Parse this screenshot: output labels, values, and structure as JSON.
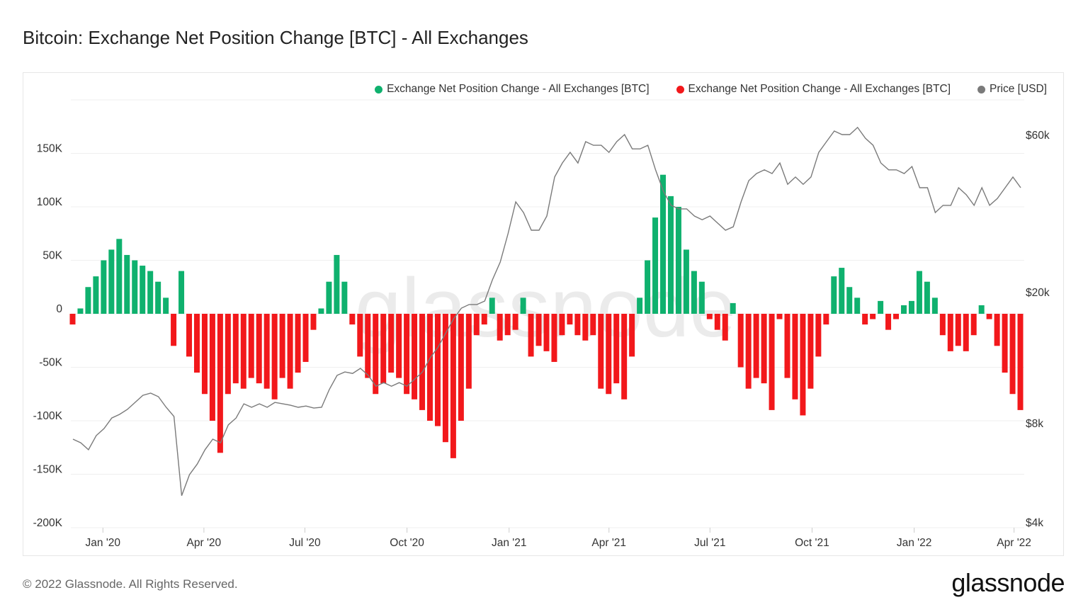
{
  "title": "Bitcoin: Exchange Net Position Change [BTC] - All Exchanges",
  "footer": "© 2022 Glassnode. All Rights Reserved.",
  "logo_text": "glassnode",
  "watermark_text": "glassnode",
  "colors": {
    "positive": "#0fb16e",
    "negative": "#f2181b",
    "price": "#7a7a7a",
    "grid": "#efefef"
  },
  "legend": [
    {
      "label": "Exchange Net Position Change - All Exchanges [BTC]",
      "color": "#0fb16e"
    },
    {
      "label": "Exchange Net Position Change - All Exchanges [BTC]",
      "color": "#f2181b"
    },
    {
      "label": "Price [USD]",
      "color": "#7a7a7a"
    }
  ],
  "chart_data": {
    "type": "bar+line",
    "title": "Bitcoin: Exchange Net Position Change [BTC] - All Exchanges",
    "ylim": [
      -200000,
      200000
    ],
    "y_ticks": [
      {
        "value": 150000,
        "label": "150K"
      },
      {
        "value": 100000,
        "label": "100K"
      },
      {
        "value": 50000,
        "label": "50K"
      },
      {
        "value": 0,
        "label": "0"
      },
      {
        "value": -50000,
        "label": "-50K"
      },
      {
        "value": -100000,
        "label": "-100K"
      },
      {
        "value": -150000,
        "label": "-150K"
      },
      {
        "value": -200000,
        "label": "-200K"
      }
    ],
    "y2_scale": "log",
    "y2lim": [
      4000,
      77000
    ],
    "y2_ticks": [
      {
        "value": 60000,
        "label": "$60k"
      },
      {
        "value": 20000,
        "label": "$20k"
      },
      {
        "value": 8000,
        "label": "$8k"
      },
      {
        "value": 4000,
        "label": "$4k"
      }
    ],
    "x_ticks": [
      {
        "date": "2020-01-01",
        "label": "Jan '20"
      },
      {
        "date": "2020-04-01",
        "label": "Apr '20"
      },
      {
        "date": "2020-07-01",
        "label": "Jul '20"
      },
      {
        "date": "2020-10-01",
        "label": "Oct '20"
      },
      {
        "date": "2021-01-01",
        "label": "Jan '21"
      },
      {
        "date": "2021-04-01",
        "label": "Apr '21"
      },
      {
        "date": "2021-07-01",
        "label": "Jul '21"
      },
      {
        "date": "2021-10-01",
        "label": "Oct '21"
      },
      {
        "date": "2022-01-01",
        "label": "Jan '22"
      },
      {
        "date": "2022-04-01",
        "label": "Apr '22"
      }
    ],
    "grid": true,
    "legend_position": "top-right",
    "dates": [
      "2019-12-05",
      "2019-12-12",
      "2019-12-19",
      "2019-12-26",
      "2020-01-02",
      "2020-01-09",
      "2020-01-16",
      "2020-01-23",
      "2020-01-30",
      "2020-02-06",
      "2020-02-13",
      "2020-02-20",
      "2020-02-27",
      "2020-03-05",
      "2020-03-12",
      "2020-03-19",
      "2020-03-26",
      "2020-04-02",
      "2020-04-09",
      "2020-04-16",
      "2020-04-23",
      "2020-04-30",
      "2020-05-07",
      "2020-05-14",
      "2020-05-21",
      "2020-05-28",
      "2020-06-04",
      "2020-06-11",
      "2020-06-18",
      "2020-06-25",
      "2020-07-02",
      "2020-07-09",
      "2020-07-16",
      "2020-07-23",
      "2020-07-30",
      "2020-08-06",
      "2020-08-13",
      "2020-08-20",
      "2020-08-27",
      "2020-09-03",
      "2020-09-10",
      "2020-09-17",
      "2020-09-24",
      "2020-10-01",
      "2020-10-08",
      "2020-10-15",
      "2020-10-22",
      "2020-10-29",
      "2020-11-05",
      "2020-11-12",
      "2020-11-19",
      "2020-11-26",
      "2020-12-03",
      "2020-12-10",
      "2020-12-17",
      "2020-12-24",
      "2020-12-31",
      "2021-01-07",
      "2021-01-14",
      "2021-01-21",
      "2021-01-28",
      "2021-02-04",
      "2021-02-11",
      "2021-02-18",
      "2021-02-25",
      "2021-03-04",
      "2021-03-11",
      "2021-03-18",
      "2021-03-25",
      "2021-04-01",
      "2021-04-08",
      "2021-04-15",
      "2021-04-22",
      "2021-04-29",
      "2021-05-06",
      "2021-05-13",
      "2021-05-20",
      "2021-05-27",
      "2021-06-03",
      "2021-06-10",
      "2021-06-17",
      "2021-06-24",
      "2021-07-01",
      "2021-07-08",
      "2021-07-15",
      "2021-07-22",
      "2021-07-29",
      "2021-08-05",
      "2021-08-12",
      "2021-08-19",
      "2021-08-26",
      "2021-09-02",
      "2021-09-09",
      "2021-09-16",
      "2021-09-23",
      "2021-09-30",
      "2021-10-07",
      "2021-10-14",
      "2021-10-21",
      "2021-10-28",
      "2021-11-04",
      "2021-11-11",
      "2021-11-18",
      "2021-11-25",
      "2021-12-02",
      "2021-12-09",
      "2021-12-16",
      "2021-12-23",
      "2021-12-30",
      "2022-01-06",
      "2022-01-13",
      "2022-01-20",
      "2022-01-27",
      "2022-02-03",
      "2022-02-10",
      "2022-02-17",
      "2022-02-24",
      "2022-03-03",
      "2022-03-10",
      "2022-03-17",
      "2022-03-24",
      "2022-03-31",
      "2022-04-07"
    ],
    "net_position_change_btc": [
      -10000,
      5000,
      25000,
      35000,
      50000,
      60000,
      70000,
      55000,
      50000,
      45000,
      40000,
      30000,
      15000,
      -30000,
      40000,
      -40000,
      -55000,
      -75000,
      -100000,
      -130000,
      -75000,
      -65000,
      -70000,
      -60000,
      -65000,
      -70000,
      -80000,
      -60000,
      -70000,
      -55000,
      -45000,
      -15000,
      5000,
      30000,
      55000,
      30000,
      -10000,
      -40000,
      -60000,
      -75000,
      -65000,
      -55000,
      -60000,
      -75000,
      -80000,
      -90000,
      -100000,
      -105000,
      -120000,
      -135000,
      -100000,
      -70000,
      -20000,
      -10000,
      15000,
      -25000,
      -20000,
      -15000,
      15000,
      -40000,
      -30000,
      -35000,
      -45000,
      -20000,
      -10000,
      -20000,
      -25000,
      -20000,
      -70000,
      -75000,
      -65000,
      -80000,
      -40000,
      15000,
      50000,
      90000,
      130000,
      110000,
      100000,
      60000,
      40000,
      30000,
      -5000,
      -15000,
      -25000,
      10000,
      -50000,
      -70000,
      -60000,
      -65000,
      -90000,
      -5000,
      -60000,
      -80000,
      -95000,
      -70000,
      -40000,
      -10000,
      35000,
      43000,
      25000,
      15000,
      -10000,
      -5000,
      12000,
      -15000,
      -5000,
      8000,
      12000,
      40000,
      30000,
      15000,
      -20000,
      -35000,
      -30000,
      -35000,
      -20000,
      8000,
      -5000,
      -30000,
      -55000,
      -75000,
      -90000
    ],
    "price_usd": [
      7140,
      6960,
      6630,
      7320,
      7690,
      8280,
      8490,
      8790,
      9230,
      9700,
      9850,
      9610,
      8920,
      8370,
      4810,
      5570,
      6000,
      6630,
      7140,
      6960,
      7890,
      8280,
      9140,
      8920,
      9140,
      8920,
      9230,
      9140,
      9050,
      8920,
      9000,
      8870,
      8920,
      10100,
      11150,
      11420,
      11300,
      11710,
      11150,
      10340,
      10600,
      10340,
      10600,
      10340,
      10870,
      11420,
      12620,
      13590,
      15000,
      16560,
      17840,
      18300,
      18300,
      18750,
      21750,
      24610,
      30000,
      37500,
      34800,
      30760,
      30760,
      33960,
      44600,
      49200,
      53000,
      49200,
      57100,
      55700,
      55700,
      53000,
      57100,
      60000,
      54300,
      54300,
      55700,
      46900,
      40400,
      36600,
      35700,
      35700,
      33960,
      33100,
      33960,
      32300,
      30760,
      31500,
      37500,
      43500,
      45700,
      46900,
      45700,
      49200,
      42400,
      44600,
      42400,
      44600,
      53000,
      57100,
      61500,
      60000,
      60000,
      63100,
      58500,
      55700,
      49200,
      46900,
      46900,
      45700,
      48000,
      41400,
      41400,
      34800,
      36600,
      36600,
      41400,
      39400,
      36600,
      41400,
      36600,
      38400,
      41400,
      44600,
      41400
    ]
  }
}
